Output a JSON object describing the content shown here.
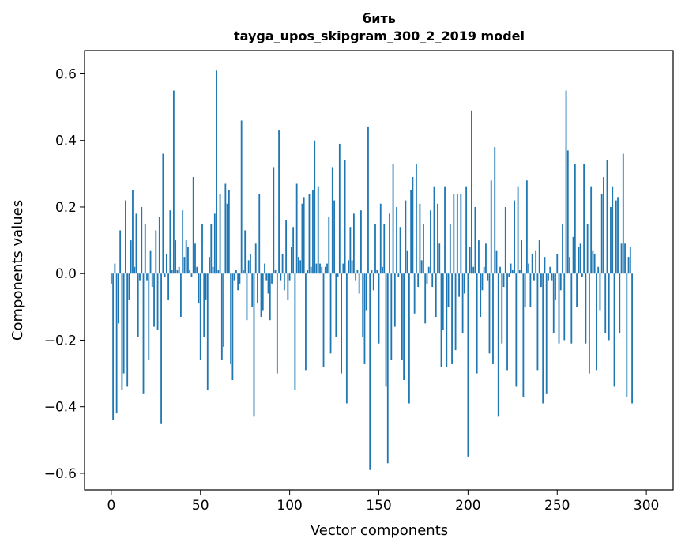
{
  "chart_data": {
    "type": "bar",
    "title": "бить",
    "subtitle": "tayga_upos_skipgram_300_2_2019 model",
    "xlabel": "Vector components",
    "ylabel": "Components values",
    "xlim": [
      -15,
      315
    ],
    "ylim": [
      -0.65,
      0.67
    ],
    "xticks": [
      0,
      50,
      100,
      150,
      200,
      250,
      300
    ],
    "xtick_labels": [
      "0",
      "50",
      "100",
      "150",
      "200",
      "250",
      "300"
    ],
    "yticks": [
      -0.6,
      -0.4,
      -0.2,
      0.0,
      0.2,
      0.4,
      0.6
    ],
    "ytick_labels": [
      "−0.6",
      "−0.4",
      "−0.2",
      "0.0",
      "0.2",
      "0.4",
      "0.6"
    ],
    "grid": false,
    "bar_color": "#1f77b4",
    "values": [
      -0.03,
      -0.44,
      0.03,
      -0.42,
      -0.15,
      0.13,
      -0.35,
      -0.3,
      0.22,
      -0.34,
      -0.08,
      0.1,
      0.25,
      0.02,
      0.18,
      -0.19,
      -0.02,
      0.2,
      -0.36,
      0.15,
      -0.02,
      -0.26,
      0.07,
      -0.04,
      -0.16,
      0.13,
      -0.17,
      0.17,
      -0.45,
      0.36,
      -0.01,
      0.06,
      -0.08,
      0.19,
      0.01,
      0.55,
      0.1,
      0.01,
      0.02,
      -0.13,
      0.19,
      0.05,
      0.1,
      0.08,
      0.01,
      -0.01,
      0.29,
      0.09,
      0.02,
      -0.09,
      -0.26,
      0.15,
      -0.19,
      -0.08,
      -0.35,
      0.05,
      0.15,
      0.02,
      0.18,
      0.61,
      0.01,
      0.24,
      -0.26,
      -0.22,
      0.27,
      0.21,
      0.25,
      -0.27,
      -0.32,
      -0.02,
      0.01,
      -0.05,
      -0.03,
      0.46,
      0.01,
      0.13,
      -0.14,
      0.04,
      0.06,
      -0.1,
      -0.43,
      0.09,
      -0.09,
      0.24,
      -0.13,
      -0.11,
      0.03,
      -0.02,
      -0.06,
      -0.14,
      -0.03,
      0.32,
      0.01,
      -0.3,
      0.43,
      -0.02,
      0.06,
      -0.05,
      0.16,
      -0.08,
      -0.02,
      0.08,
      0.14,
      -0.35,
      0.27,
      0.05,
      0.04,
      0.21,
      0.23,
      -0.29,
      0.01,
      0.24,
      0.02,
      0.25,
      0.4,
      0.03,
      0.26,
      0.03,
      0.02,
      -0.28,
      0.02,
      0.03,
      0.17,
      -0.24,
      0.32,
      0.22,
      -0.19,
      -0.01,
      0.39,
      -0.3,
      0.03,
      0.34,
      -0.39,
      0.04,
      0.14,
      0.04,
      0.18,
      -0.02,
      0.01,
      -0.06,
      0.19,
      -0.19,
      -0.27,
      -0.11,
      0.44,
      -0.59,
      0.01,
      -0.05,
      0.15,
      0.01,
      -0.21,
      0.21,
      0.02,
      0.15,
      -0.34,
      -0.57,
      0.18,
      -0.26,
      0.33,
      -0.16,
      0.2,
      -0.01,
      0.14,
      -0.26,
      -0.32,
      0.22,
      0.07,
      -0.39,
      0.25,
      0.29,
      -0.12,
      0.33,
      -0.04,
      0.21,
      0.04,
      0.15,
      -0.15,
      -0.03,
      0.02,
      0.19,
      -0.04,
      0.26,
      -0.13,
      0.21,
      0.09,
      -0.28,
      -0.17,
      0.26,
      -0.28,
      -0.1,
      0.15,
      -0.27,
      0.24,
      -0.23,
      0.24,
      -0.07,
      0.24,
      -0.18,
      -0.06,
      0.26,
      -0.55,
      0.08,
      0.49,
      0.02,
      0.2,
      -0.3,
      0.1,
      -0.13,
      -0.05,
      0.02,
      0.09,
      -0.02,
      -0.24,
      0.28,
      -0.27,
      0.38,
      0.07,
      -0.43,
      0.02,
      -0.21,
      -0.04,
      0.2,
      -0.29,
      -0.01,
      0.03,
      0.01,
      0.22,
      -0.34,
      0.26,
      0.01,
      0.1,
      -0.37,
      -0.1,
      0.28,
      0.03,
      -0.1,
      0.06,
      -0.02,
      0.07,
      -0.29,
      0.1,
      -0.04,
      -0.39,
      0.05,
      -0.36,
      -0.02,
      0.02,
      -0.02,
      -0.18,
      -0.08,
      0.06,
      -0.21,
      -0.05,
      0.15,
      -0.2,
      0.55,
      0.37,
      0.05,
      -0.21,
      0.11,
      0.33,
      -0.1,
      0.08,
      0.09,
      -0.01,
      0.33,
      -0.21,
      0.15,
      -0.3,
      0.26,
      0.07,
      0.06,
      -0.29,
      0.02,
      -0.11,
      0.24,
      0.29,
      -0.18,
      0.34,
      -0.2,
      0.2,
      0.26,
      -0.34,
      0.22,
      0.23,
      -0.18,
      0.09,
      0.36,
      0.09,
      -0.37,
      0.05,
      0.08,
      -0.39
    ]
  }
}
